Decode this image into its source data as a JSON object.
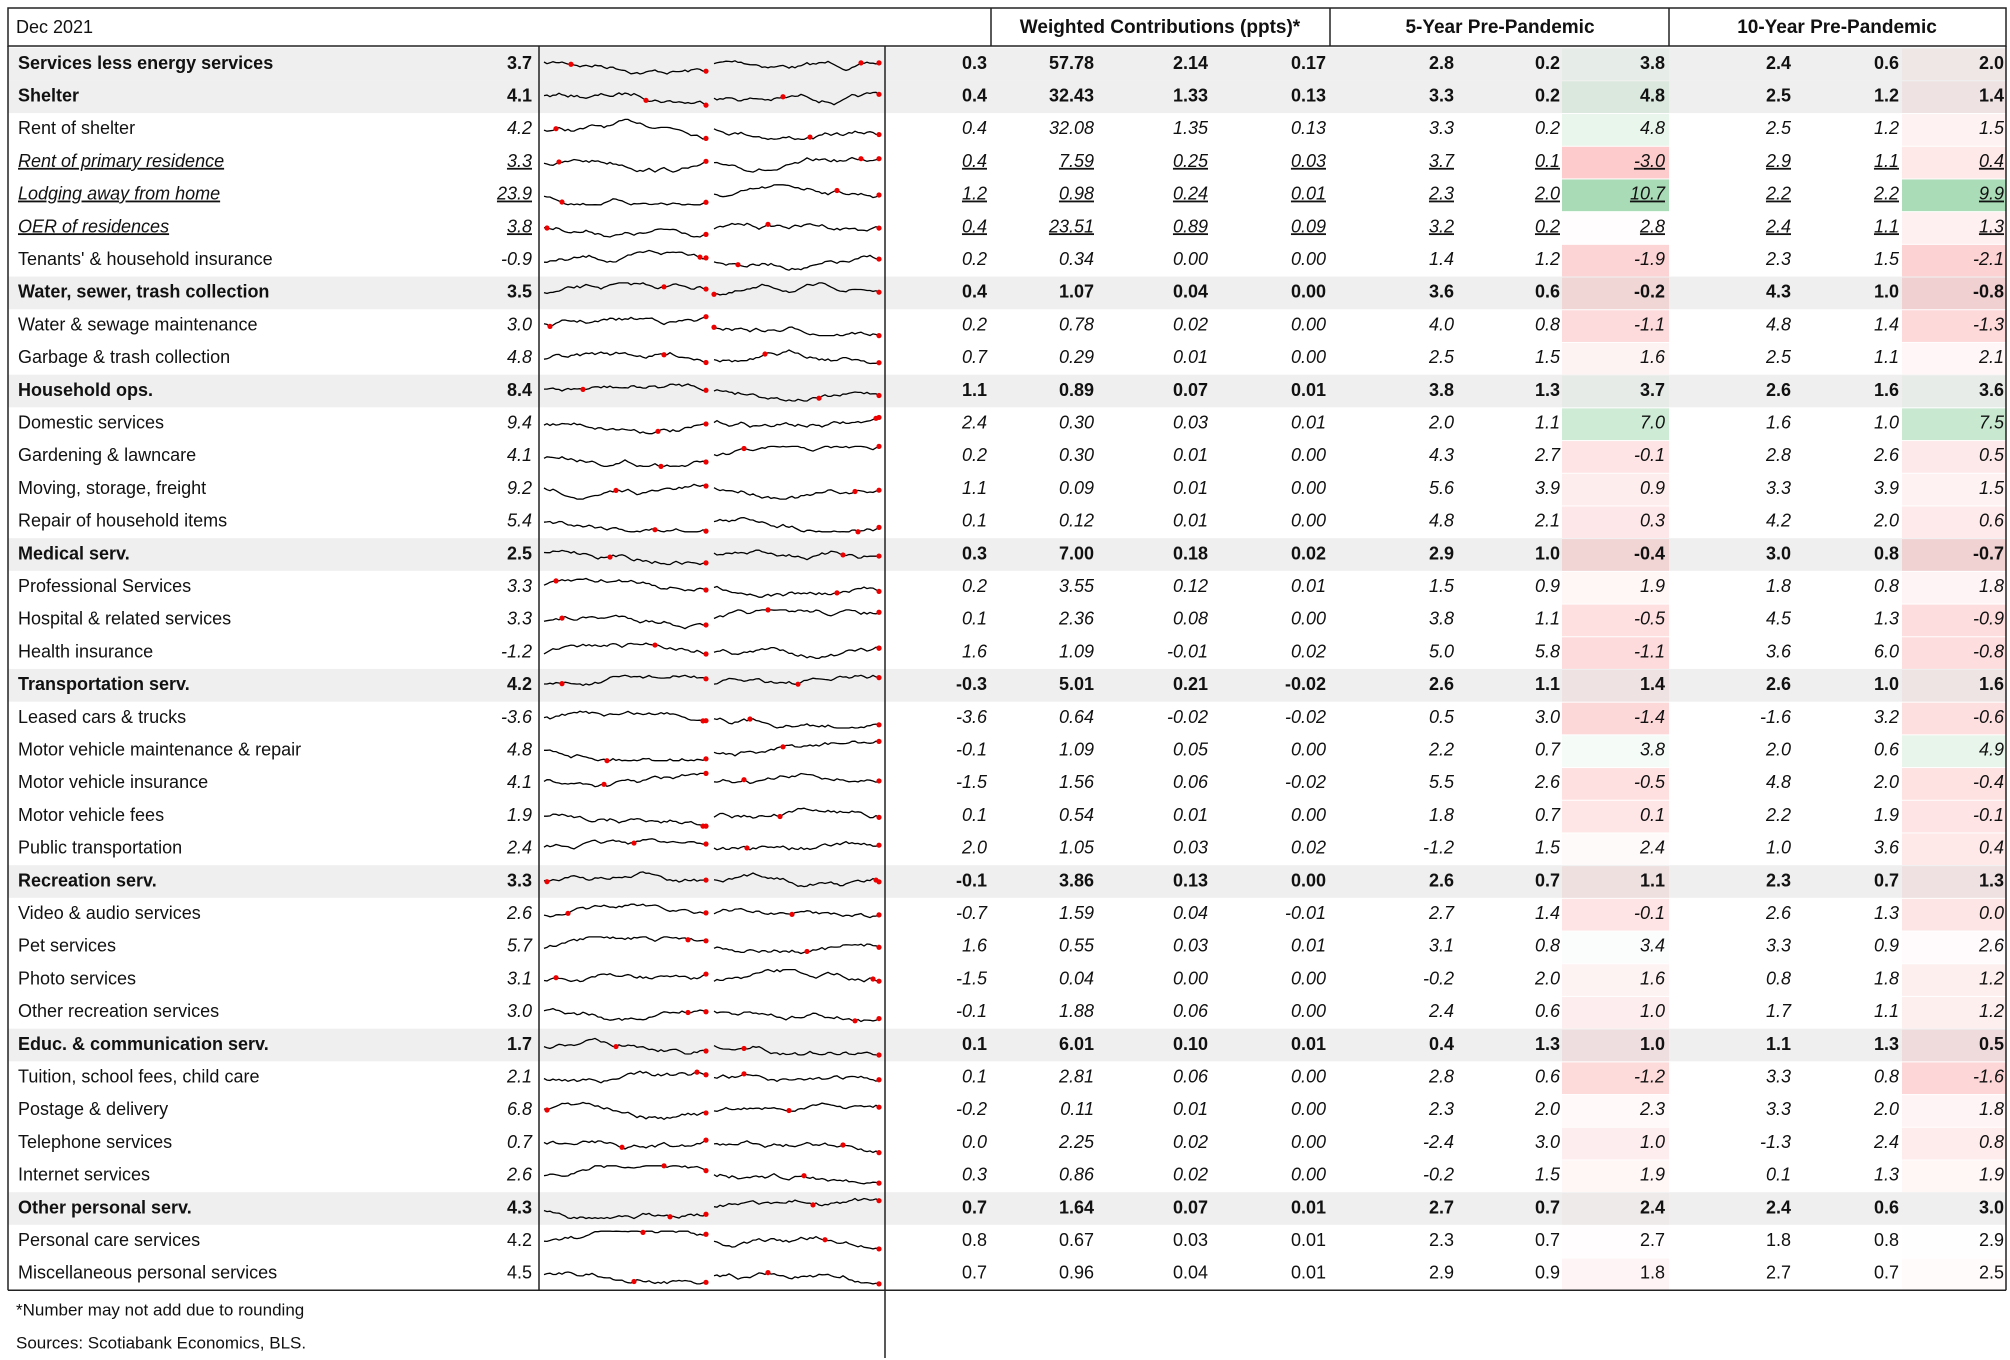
{
  "header": {
    "title": "Dec 2021",
    "groups": [
      "Weighted Contributions (ppts)*",
      "5-Year Pre-Pandemic",
      "10-Year Pre-Pandemic"
    ]
  },
  "table": {
    "rows": [
      {
        "label": "Services less energy services",
        "style": "bold",
        "cells": [
          "3.7",
          "0.3",
          "57.78",
          "2.14",
          "0.17",
          "2.8",
          "0.2",
          "3.8",
          "2.4",
          "0.6",
          "2.0"
        ]
      },
      {
        "label": "Shelter",
        "style": "bold",
        "cells": [
          "4.1",
          "0.4",
          "32.43",
          "1.33",
          "0.13",
          "3.3",
          "0.2",
          "4.8",
          "2.5",
          "1.2",
          "1.4"
        ]
      },
      {
        "label": "Rent of shelter",
        "style": "italic",
        "cells": [
          "4.2",
          "0.4",
          "32.08",
          "1.35",
          "0.13",
          "3.3",
          "0.2",
          "4.8",
          "2.5",
          "1.2",
          "1.5"
        ]
      },
      {
        "label": "Rent of  primary residence",
        "style": "underline",
        "cells": [
          "3.3",
          "0.4",
          "7.59",
          "0.25",
          "0.03",
          "3.7",
          "0.1",
          "-3.0",
          "2.9",
          "1.1",
          "0.4"
        ]
      },
      {
        "label": "Lodging away from home",
        "style": "underline",
        "cells": [
          "23.9",
          "1.2",
          "0.98",
          "0.24",
          "0.01",
          "2.3",
          "2.0",
          "10.7",
          "2.2",
          "2.2",
          "9.9"
        ]
      },
      {
        "label": "OER of residences",
        "style": "underline",
        "cells": [
          "3.8",
          "0.4",
          "23.51",
          "0.89",
          "0.09",
          "3.2",
          "0.2",
          "2.8",
          "2.4",
          "1.1",
          "1.3"
        ]
      },
      {
        "label": "Tenants' & household insurance",
        "style": "italic",
        "cells": [
          "-0.9",
          "0.2",
          "0.34",
          "0.00",
          "0.00",
          "1.4",
          "1.2",
          "-1.9",
          "2.3",
          "1.5",
          "-2.1"
        ]
      },
      {
        "label": "Water, sewer, trash collection",
        "style": "bold",
        "cells": [
          "3.5",
          "0.4",
          "1.07",
          "0.04",
          "0.00",
          "3.6",
          "0.6",
          "-0.2",
          "4.3",
          "1.0",
          "-0.8"
        ]
      },
      {
        "label": "Water & sewage maintenance",
        "style": "italic",
        "cells": [
          "3.0",
          "0.2",
          "0.78",
          "0.02",
          "0.00",
          "4.0",
          "0.8",
          "-1.1",
          "4.8",
          "1.4",
          "-1.3"
        ]
      },
      {
        "label": "Garbage & trash collection",
        "style": "italic",
        "cells": [
          "4.8",
          "0.7",
          "0.29",
          "0.01",
          "0.00",
          "2.5",
          "1.5",
          "1.6",
          "2.5",
          "1.1",
          "2.1"
        ]
      },
      {
        "label": "Household ops.",
        "style": "bold",
        "cells": [
          "8.4",
          "1.1",
          "0.89",
          "0.07",
          "0.01",
          "3.8",
          "1.3",
          "3.7",
          "2.6",
          "1.6",
          "3.6"
        ]
      },
      {
        "label": "Domestic services",
        "style": "italic",
        "cells": [
          "9.4",
          "2.4",
          "0.30",
          "0.03",
          "0.01",
          "2.0",
          "1.1",
          "7.0",
          "1.6",
          "1.0",
          "7.5"
        ]
      },
      {
        "label": "Gardening & lawncare",
        "style": "italic",
        "cells": [
          "4.1",
          "0.2",
          "0.30",
          "0.01",
          "0.00",
          "4.3",
          "2.7",
          "-0.1",
          "2.8",
          "2.6",
          "0.5"
        ]
      },
      {
        "label": "Moving, storage, freight",
        "style": "italic",
        "cells": [
          "9.2",
          "1.1",
          "0.09",
          "0.01",
          "0.00",
          "5.6",
          "3.9",
          "0.9",
          "3.3",
          "3.9",
          "1.5"
        ]
      },
      {
        "label": "Repair of household items",
        "style": "italic",
        "cells": [
          "5.4",
          "0.1",
          "0.12",
          "0.01",
          "0.00",
          "4.8",
          "2.1",
          "0.3",
          "4.2",
          "2.0",
          "0.6"
        ]
      },
      {
        "label": "Medical serv.",
        "style": "bold",
        "cells": [
          "2.5",
          "0.3",
          "7.00",
          "0.18",
          "0.02",
          "2.9",
          "1.0",
          "-0.4",
          "3.0",
          "0.8",
          "-0.7"
        ]
      },
      {
        "label": "Professional Services",
        "style": "italic",
        "cells": [
          "3.3",
          "0.2",
          "3.55",
          "0.12",
          "0.01",
          "1.5",
          "0.9",
          "1.9",
          "1.8",
          "0.8",
          "1.8"
        ]
      },
      {
        "label": "Hospital & related services",
        "style": "italic",
        "cells": [
          "3.3",
          "0.1",
          "2.36",
          "0.08",
          "0.00",
          "3.8",
          "1.1",
          "-0.5",
          "4.5",
          "1.3",
          "-0.9"
        ]
      },
      {
        "label": "Health insurance",
        "style": "italic",
        "cells": [
          "-1.2",
          "1.6",
          "1.09",
          "-0.01",
          "0.02",
          "5.0",
          "5.8",
          "-1.1",
          "3.6",
          "6.0",
          "-0.8"
        ]
      },
      {
        "label": "Transportation serv.",
        "style": "bold",
        "cells": [
          "4.2",
          "-0.3",
          "5.01",
          "0.21",
          "-0.02",
          "2.6",
          "1.1",
          "1.4",
          "2.6",
          "1.0",
          "1.6"
        ]
      },
      {
        "label": "Leased cars & trucks",
        "style": "italic",
        "cells": [
          "-3.6",
          "-3.6",
          "0.64",
          "-0.02",
          "-0.02",
          "0.5",
          "3.0",
          "-1.4",
          "-1.6",
          "3.2",
          "-0.6"
        ]
      },
      {
        "label": "Motor vehicle maintenance & repair",
        "style": "italic",
        "cells": [
          "4.8",
          "-0.1",
          "1.09",
          "0.05",
          "0.00",
          "2.2",
          "0.7",
          "3.8",
          "2.0",
          "0.6",
          "4.9"
        ]
      },
      {
        "label": "Motor vehicle insurance",
        "style": "italic",
        "cells": [
          "4.1",
          "-1.5",
          "1.56",
          "0.06",
          "-0.02",
          "5.5",
          "2.6",
          "-0.5",
          "4.8",
          "2.0",
          "-0.4"
        ]
      },
      {
        "label": "Motor vehicle fees",
        "style": "italic",
        "cells": [
          "1.9",
          "0.1",
          "0.54",
          "0.01",
          "0.00",
          "1.8",
          "0.7",
          "0.1",
          "2.2",
          "1.9",
          "-0.1"
        ]
      },
      {
        "label": "Public transportation",
        "style": "italic",
        "cells": [
          "2.4",
          "2.0",
          "1.05",
          "0.03",
          "0.02",
          "-1.2",
          "1.5",
          "2.4",
          "1.0",
          "3.6",
          "0.4"
        ]
      },
      {
        "label": "Recreation serv.",
        "style": "bold",
        "cells": [
          "3.3",
          "-0.1",
          "3.86",
          "0.13",
          "0.00",
          "2.6",
          "0.7",
          "1.1",
          "2.3",
          "0.7",
          "1.3"
        ]
      },
      {
        "label": "Video & audio services",
        "style": "italic",
        "cells": [
          "2.6",
          "-0.7",
          "1.59",
          "0.04",
          "-0.01",
          "2.7",
          "1.4",
          "-0.1",
          "2.6",
          "1.3",
          "0.0"
        ]
      },
      {
        "label": "Pet services",
        "style": "italic",
        "cells": [
          "5.7",
          "1.6",
          "0.55",
          "0.03",
          "0.01",
          "3.1",
          "0.8",
          "3.4",
          "3.3",
          "0.9",
          "2.6"
        ]
      },
      {
        "label": "Photo services",
        "style": "italic",
        "cells": [
          "3.1",
          "-1.5",
          "0.04",
          "0.00",
          "0.00",
          "-0.2",
          "2.0",
          "1.6",
          "0.8",
          "1.8",
          "1.2"
        ]
      },
      {
        "label": "Other recreation services",
        "style": "italic",
        "cells": [
          "3.0",
          "-0.1",
          "1.88",
          "0.06",
          "0.00",
          "2.4",
          "0.6",
          "1.0",
          "1.7",
          "1.1",
          "1.2"
        ]
      },
      {
        "label": "Educ. & communication serv.",
        "style": "bold",
        "cells": [
          "1.7",
          "0.1",
          "6.01",
          "0.10",
          "0.01",
          "0.4",
          "1.3",
          "1.0",
          "1.1",
          "1.3",
          "0.5"
        ]
      },
      {
        "label": "Tuition, school fees, child care",
        "style": "italic",
        "cells": [
          "2.1",
          "0.1",
          "2.81",
          "0.06",
          "0.00",
          "2.8",
          "0.6",
          "-1.2",
          "3.3",
          "0.8",
          "-1.6"
        ]
      },
      {
        "label": "Postage & delivery",
        "style": "italic",
        "cells": [
          "6.8",
          "-0.2",
          "0.11",
          "0.01",
          "0.00",
          "2.3",
          "2.0",
          "2.3",
          "3.3",
          "2.0",
          "1.8"
        ]
      },
      {
        "label": "Telephone services",
        "style": "italic",
        "cells": [
          "0.7",
          "0.0",
          "2.25",
          "0.02",
          "0.00",
          "-2.4",
          "3.0",
          "1.0",
          "-1.3",
          "2.4",
          "0.8"
        ]
      },
      {
        "label": "Internet services",
        "style": "italic",
        "cells": [
          "2.6",
          "0.3",
          "0.86",
          "0.02",
          "0.00",
          "-0.2",
          "1.5",
          "1.9",
          "0.1",
          "1.3",
          "1.9"
        ]
      },
      {
        "label": "Other personal serv.",
        "style": "bold",
        "cells": [
          "4.3",
          "0.7",
          "1.64",
          "0.07",
          "0.01",
          "2.7",
          "0.7",
          "2.4",
          "2.4",
          "0.6",
          "3.0"
        ]
      },
      {
        "label": "Personal care services",
        "style": "plain",
        "cells": [
          "4.2",
          "0.8",
          "0.67",
          "0.03",
          "0.01",
          "2.3",
          "0.7",
          "2.7",
          "1.8",
          "0.8",
          "2.9"
        ]
      },
      {
        "label": "Miscellaneous personal services",
        "style": "plain",
        "cells": [
          "4.5",
          "0.7",
          "0.96",
          "0.04",
          "0.01",
          "2.9",
          "0.9",
          "1.8",
          "2.7",
          "0.7",
          "2.5"
        ]
      }
    ]
  },
  "footnotes": [
    "*Number may not add due to rounding",
    "Sources: Scotiabank Economics, BLS."
  ]
}
